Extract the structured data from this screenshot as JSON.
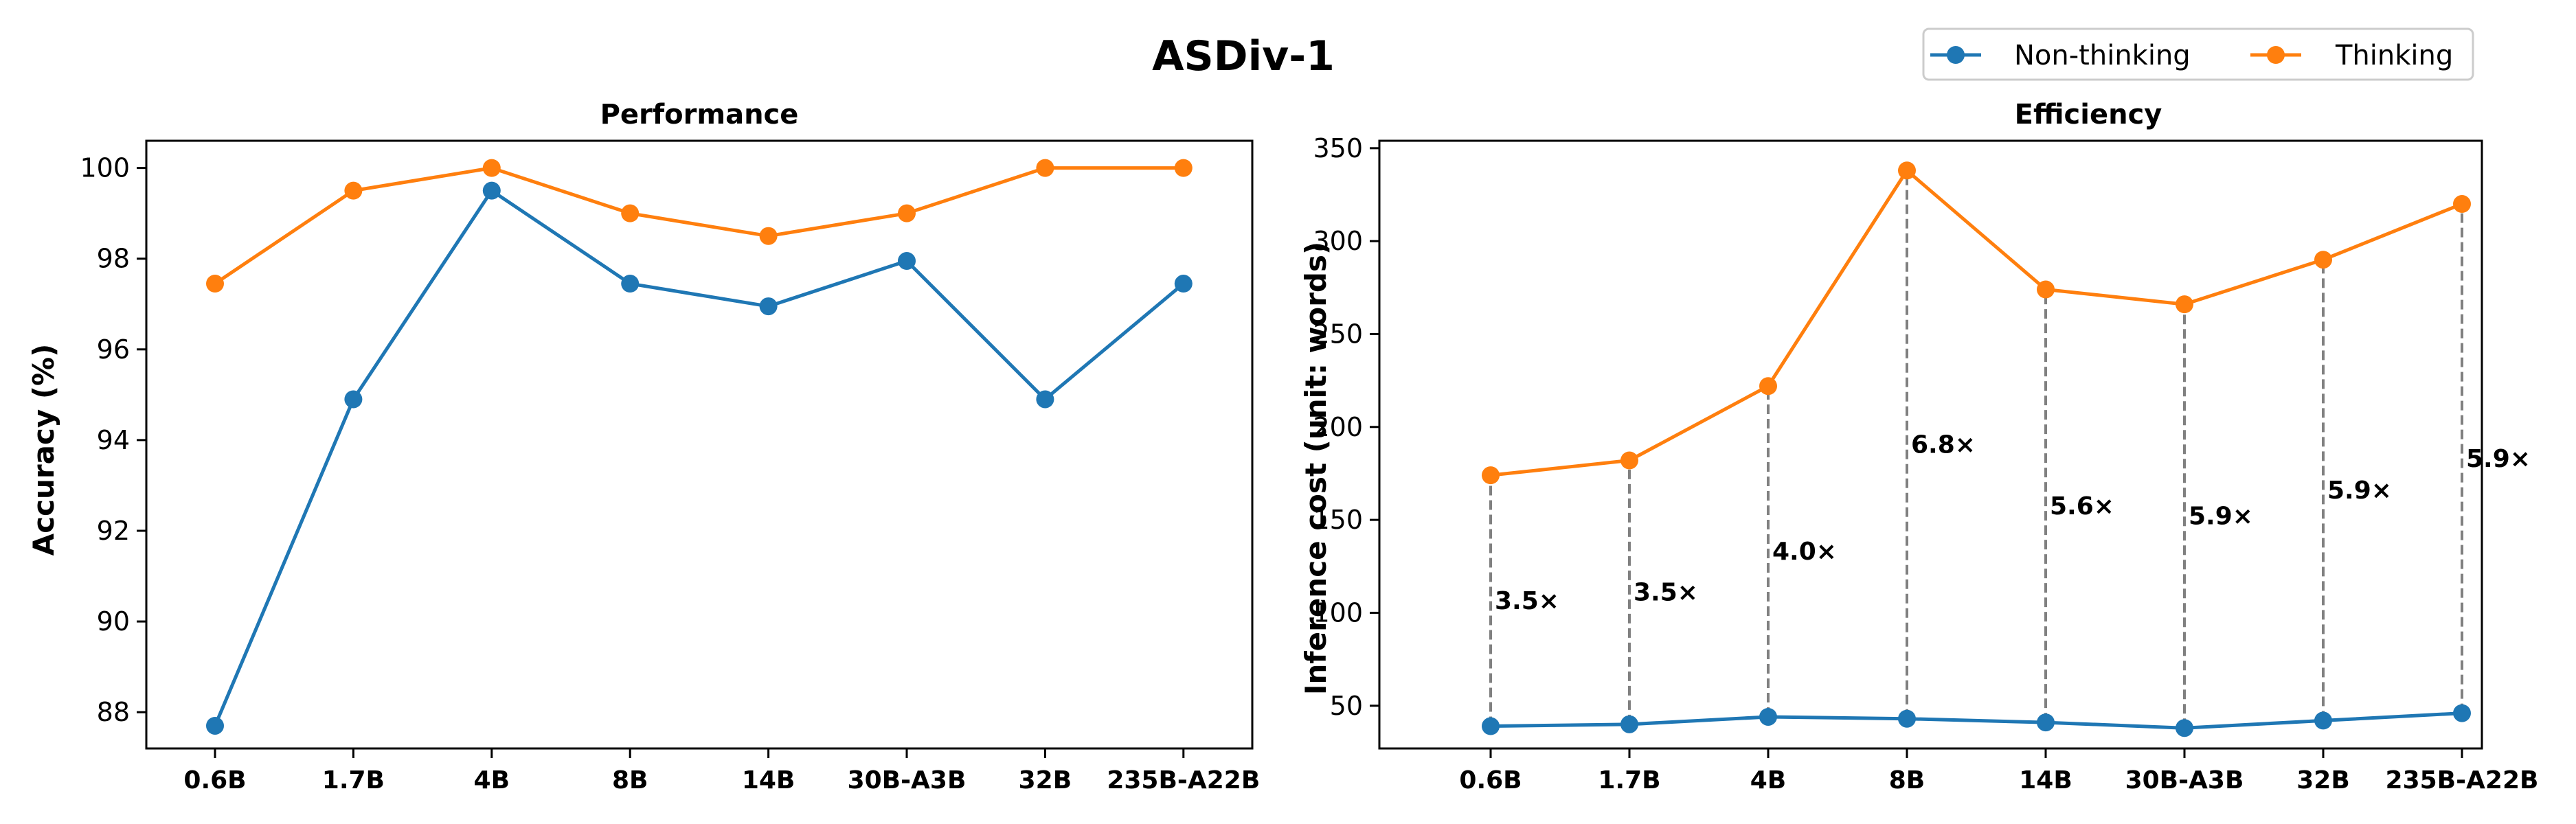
{
  "chart_data": {
    "type": "line",
    "title": "ASDiv-1",
    "legend": {
      "placement": "top-right",
      "entries": [
        {
          "name": "Non-thinking",
          "color": "#1f77b4"
        },
        {
          "name": "Thinking",
          "color": "#ff7f0e"
        }
      ]
    },
    "categories": [
      "0.6B",
      "1.7B",
      "4B",
      "8B",
      "14B",
      "30B-A3B",
      "32B",
      "235B-A22B"
    ],
    "subplots": [
      {
        "title": "Performance",
        "xlabel": "",
        "ylabel": "Accuracy (%)",
        "ylim": [
          87.2,
          100.6
        ],
        "yticks": [
          88,
          90,
          92,
          94,
          96,
          98,
          100
        ],
        "series": [
          {
            "name": "Non-thinking",
            "color": "#1f77b4",
            "values": [
              87.7,
              94.9,
              99.5,
              97.45,
              96.95,
              97.95,
              94.9,
              97.45
            ]
          },
          {
            "name": "Thinking",
            "color": "#ff7f0e",
            "values": [
              97.45,
              99.5,
              100.0,
              99.0,
              98.5,
              99.0,
              100.0,
              100.0
            ]
          }
        ]
      },
      {
        "title": "Efficiency",
        "xlabel": "",
        "ylabel": "Inference cost (unit: words)",
        "ylim": [
          27,
          354
        ],
        "yticks": [
          50,
          100,
          150,
          200,
          250,
          300,
          350
        ],
        "series": [
          {
            "name": "Non-thinking",
            "color": "#1f77b4",
            "values": [
              39,
              40,
              44,
              43,
              41,
              38,
              42,
              46
            ]
          },
          {
            "name": "Thinking",
            "color": "#ff7f0e",
            "values": [
              174,
              182,
              222,
              338,
              274,
              266,
              290,
              320
            ]
          }
        ],
        "ratio_labels": [
          "3.5×",
          "3.5×",
          "4.0×",
          "6.8×",
          "5.6×",
          "5.9×",
          "5.9×",
          "5.9×"
        ]
      }
    ]
  }
}
